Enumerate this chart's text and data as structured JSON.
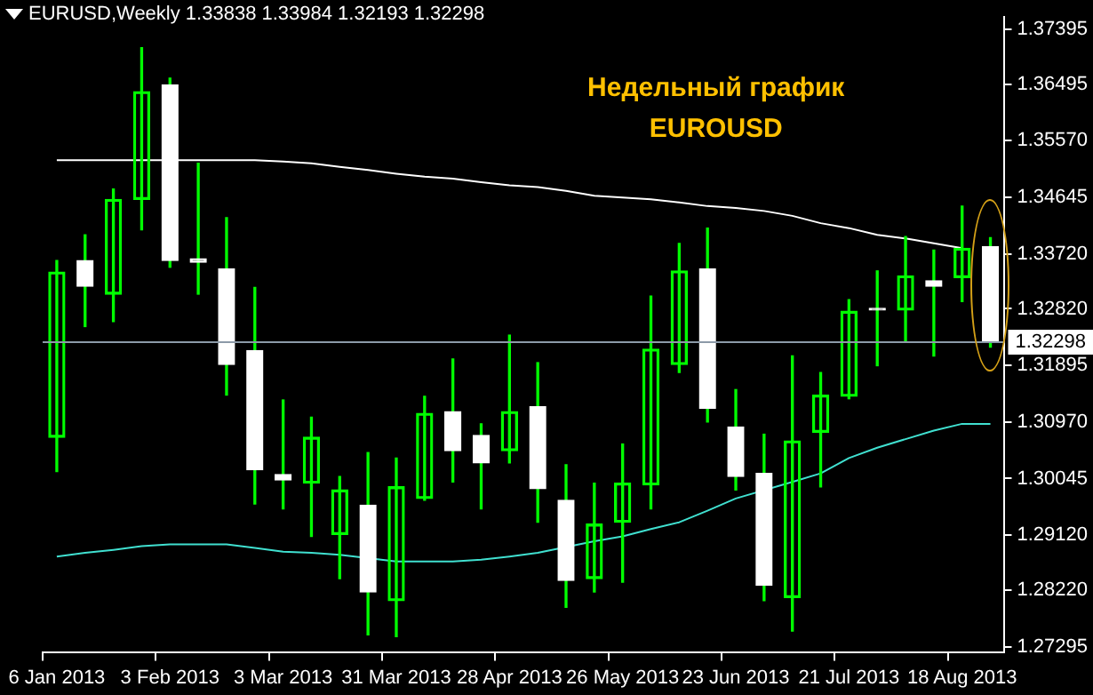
{
  "chart_data": {
    "type": "candlestick",
    "title": "EURUSD,Weekly 1.33838 1.33984 1.32193 1.32298",
    "annotations": [
      "Недельный график EUROUSD"
    ],
    "categories": [
      "6 Jan 2013",
      null,
      null,
      null,
      "3 Feb 2013",
      null,
      null,
      null,
      "3 Mar 2013",
      null,
      null,
      null,
      "31 Mar 2013",
      null,
      null,
      null,
      "28 Apr 2013",
      null,
      null,
      null,
      "26 May 2013",
      null,
      null,
      null,
      "23 Jun 2013",
      null,
      null,
      null,
      "21 Jul 2013",
      null,
      null,
      null,
      "18 Aug 2013",
      null
    ],
    "ohlc": [
      [
        1.3072,
        1.3361,
        1.3016,
        1.3342
      ],
      [
        1.3361,
        1.3403,
        1.3253,
        1.3319
      ],
      [
        1.3306,
        1.3478,
        1.3261,
        1.3461
      ],
      [
        1.3461,
        1.3709,
        1.3411,
        1.3637
      ],
      [
        1.3648,
        1.3659,
        1.335,
        1.3361
      ],
      [
        1.3364,
        1.352,
        1.3306,
        1.3358
      ],
      [
        1.3347,
        1.3431,
        1.3141,
        1.3191
      ],
      [
        1.3214,
        1.3317,
        1.2963,
        1.3019
      ],
      [
        1.3011,
        1.3133,
        1.2955,
        1.3002
      ],
      [
        1.2997,
        1.3105,
        1.291,
        1.3072
      ],
      [
        1.2913,
        1.3008,
        1.2841,
        1.2986
      ],
      [
        1.2961,
        1.3047,
        1.2749,
        1.2819
      ],
      [
        1.2805,
        1.3038,
        1.2746,
        1.2991
      ],
      [
        1.2972,
        1.3139,
        1.2969,
        1.3111
      ],
      [
        1.3114,
        1.32,
        1.2999,
        1.305
      ],
      [
        1.3075,
        1.3094,
        1.2955,
        1.303
      ],
      [
        1.305,
        1.3239,
        1.303,
        1.3114
      ],
      [
        1.3122,
        1.3194,
        1.2933,
        1.2988
      ],
      [
        1.2969,
        1.3027,
        1.2794,
        1.2838
      ],
      [
        1.2841,
        1.2997,
        1.2819,
        1.293
      ],
      [
        1.2933,
        1.3061,
        1.2835,
        1.2997
      ],
      [
        1.2994,
        1.3303,
        1.2955,
        1.3216
      ],
      [
        1.3191,
        1.3389,
        1.3178,
        1.3344
      ],
      [
        1.3347,
        1.3414,
        1.3097,
        1.3119
      ],
      [
        1.3089,
        1.315,
        1.2986,
        1.3008
      ],
      [
        1.3013,
        1.3077,
        1.2805,
        1.283
      ],
      [
        1.281,
        1.3205,
        1.2755,
        1.3066
      ],
      [
        1.308,
        1.3178,
        1.2991,
        1.3141
      ],
      [
        1.3139,
        1.3297,
        1.3135,
        1.3278
      ],
      [
        1.3283,
        1.3344,
        1.3189,
        1.328
      ],
      [
        1.328,
        1.34,
        1.323,
        1.3336
      ],
      [
        1.3328,
        1.3378,
        1.3205,
        1.3319
      ],
      [
        1.3333,
        1.345,
        1.3294,
        1.3381
      ],
      [
        1.33838,
        1.33984,
        1.32193,
        1.32298
      ]
    ],
    "colors": [
      "#00ff00",
      "#ffffff",
      "#00ff00",
      "#00ff00",
      "#ffffff",
      "#ffffff",
      "#ffffff",
      "#ffffff",
      "#ffffff",
      "#00ff00",
      "#00ff00",
      "#ffffff",
      "#00ff00",
      "#00ff00",
      "#ffffff",
      "#ffffff",
      "#00ff00",
      "#ffffff",
      "#ffffff",
      "#00ff00",
      "#00ff00",
      "#00ff00",
      "#00ff00",
      "#ffffff",
      "#ffffff",
      "#ffffff",
      "#00ff00",
      "#00ff00",
      "#00ff00",
      "#ffffff",
      "#00ff00",
      "#ffffff",
      "#00ff00",
      "#ffffff"
    ],
    "series": [
      {
        "type": "line",
        "color": "#ffffff",
        "values": [
          1.3525,
          1.3525,
          1.3525,
          1.3525,
          1.3525,
          1.3525,
          1.3525,
          1.3525,
          1.3523,
          1.352,
          1.3514,
          1.3509,
          1.3503,
          1.3498,
          1.3495,
          1.3489,
          1.3484,
          1.3481,
          1.3475,
          1.3467,
          1.3464,
          1.3461,
          1.3456,
          1.345,
          1.3447,
          1.3442,
          1.3434,
          1.3422,
          1.3414,
          1.3403,
          1.3397,
          1.3389,
          1.3381,
          null
        ]
      },
      {
        "type": "line",
        "color": "#40e0d0",
        "values": [
          1.2877,
          1.2883,
          1.2888,
          1.2894,
          1.2897,
          1.2897,
          1.2897,
          1.2891,
          1.2885,
          1.2883,
          1.288,
          null,
          1.2869,
          1.2869,
          1.2869,
          1.2872,
          1.2877,
          1.2883,
          null,
          1.2902,
          1.291,
          1.2922,
          1.2933,
          1.2952,
          1.2972,
          null,
          1.2999,
          1.3013,
          1.3038,
          1.3055,
          1.3069,
          1.3083,
          1.3094,
          1.3094
        ]
      }
    ],
    "ylim": [
      1.2721,
      1.3759
    ],
    "yticks": [
      1.37395,
      1.36495,
      {
        "value": 1.3557,
        "label": "1.35570"
      },
      1.34645,
      {
        "value": 1.3372,
        "label": "1.33720"
      },
      {
        "value": 1.3282,
        "label": "1.32820"
      },
      1.31895,
      {
        "value": 1.3097,
        "label": "1.30970"
      },
      1.30045,
      {
        "value": 1.2912,
        "label": "1.29120"
      },
      {
        "value": 1.2822,
        "label": "1.28220"
      },
      1.27295
    ],
    "ref_lines": [
      {
        "axis": "y",
        "value": 1.32298,
        "label": "1.32298",
        "color": "#8c9aa8"
      }
    ],
    "legend": false,
    "grid": false
  }
}
